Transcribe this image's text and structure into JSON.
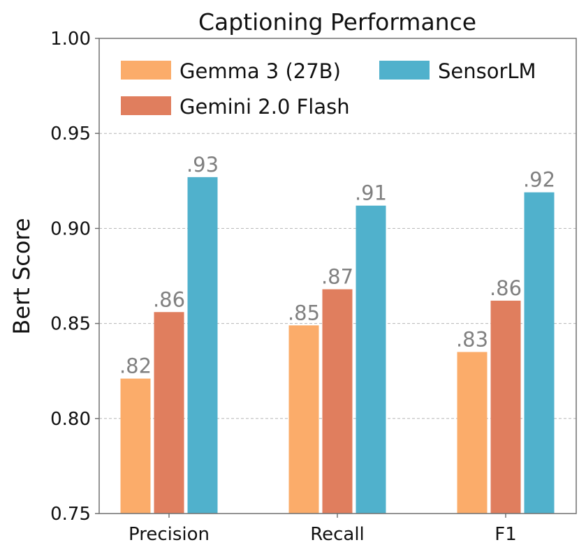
{
  "chart_data": {
    "type": "bar",
    "title": "Captioning Performance",
    "xlabel": "",
    "ylabel": "Bert Score",
    "ylim": [
      0.75,
      1.0
    ],
    "yticks": [
      "0.75",
      "0.80",
      "0.85",
      "0.90",
      "0.95",
      "1.00"
    ],
    "categories": [
      "Precision",
      "Recall",
      "F1"
    ],
    "series": [
      {
        "name": "Gemma 3 (27B)",
        "color": "#FBAC6A",
        "values": [
          0.821,
          0.849,
          0.835
        ],
        "labels": [
          ".82",
          ".85",
          ".83"
        ]
      },
      {
        "name": "Gemini 2.0 Flash",
        "color": "#E07E5E",
        "values": [
          0.856,
          0.868,
          0.862
        ],
        "labels": [
          ".86",
          ".87",
          ".86"
        ]
      },
      {
        "name": "SensorLM",
        "color": "#50B1CC",
        "values": [
          0.927,
          0.912,
          0.919
        ],
        "labels": [
          ".93",
          ".91",
          ".92"
        ]
      }
    ],
    "grid": true,
    "legend_position": "top"
  }
}
